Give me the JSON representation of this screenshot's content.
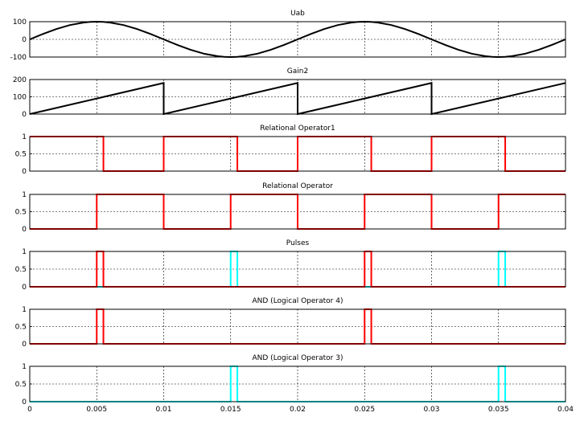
{
  "chart_data": [
    {
      "type": "line",
      "title": "Uab",
      "ylim": [
        -100,
        100
      ],
      "yticks": [
        "100",
        "0",
        "-100"
      ],
      "ytick_values": [
        100,
        0,
        -100
      ],
      "xlim": [
        0,
        0.04
      ],
      "grid": true,
      "series": [
        {
          "color": "#000000",
          "x": [
            0,
            0.001,
            0.002,
            0.003,
            0.004,
            0.0045,
            0.005,
            0.0055,
            0.006,
            0.007,
            0.008,
            0.009,
            0.01,
            0.011,
            0.012,
            0.013,
            0.014,
            0.0145,
            0.015,
            0.0155,
            0.016,
            0.017,
            0.018,
            0.019,
            0.02,
            0.021,
            0.022,
            0.023,
            0.024,
            0.0245,
            0.025,
            0.0255,
            0.026,
            0.027,
            0.028,
            0.029,
            0.03,
            0.031,
            0.032,
            0.033,
            0.034,
            0.0345,
            0.035,
            0.0355,
            0.036,
            0.037,
            0.038,
            0.039,
            0.04
          ],
          "y": [
            0,
            31,
            59,
            81,
            95,
            99,
            100,
            99,
            95,
            81,
            59,
            31,
            0,
            -31,
            -59,
            -81,
            -95,
            -99,
            -100,
            -99,
            -95,
            -81,
            -59,
            -31,
            0,
            31,
            59,
            81,
            95,
            99,
            100,
            99,
            95,
            81,
            59,
            31,
            0,
            -31,
            -59,
            -81,
            -95,
            -99,
            -100,
            -99,
            -95,
            -81,
            -59,
            -31,
            0
          ]
        }
      ]
    },
    {
      "type": "line",
      "title": "Gain2",
      "ylim": [
        0,
        200
      ],
      "yticks": [
        "200",
        "100",
        "0"
      ],
      "ytick_values": [
        200,
        100,
        0
      ],
      "xlim": [
        0,
        0.04
      ],
      "grid": true,
      "series": [
        {
          "color": "#000000",
          "x": [
            0,
            0.01,
            0.01,
            0.02,
            0.02,
            0.03,
            0.03,
            0.04
          ],
          "y": [
            0,
            180,
            0,
            180,
            0,
            180,
            0,
            180
          ]
        }
      ]
    },
    {
      "type": "line",
      "title": "Relational Operator1",
      "ylim": [
        0,
        1
      ],
      "yticks": [
        "1",
        "0.5",
        "0"
      ],
      "ytick_values": [
        1,
        0.5,
        0
      ],
      "xlim": [
        0,
        0.04
      ],
      "grid": true,
      "series": [
        {
          "color": "#ff0000",
          "x": [
            0,
            0.0055,
            0.0055,
            0.01,
            0.01,
            0.0155,
            0.0155,
            0.02,
            0.02,
            0.0255,
            0.0255,
            0.03,
            0.03,
            0.0355,
            0.0355,
            0.04
          ],
          "y": [
            1,
            1,
            0,
            0,
            1,
            1,
            0,
            0,
            1,
            1,
            0,
            0,
            1,
            1,
            0,
            0
          ]
        }
      ]
    },
    {
      "type": "line",
      "title": "Relational Operator",
      "ylim": [
        0,
        1
      ],
      "yticks": [
        "1",
        "0.5",
        "0"
      ],
      "ytick_values": [
        1,
        0.5,
        0
      ],
      "xlim": [
        0,
        0.04
      ],
      "grid": true,
      "series": [
        {
          "color": "#ff0000",
          "x": [
            0,
            0.005,
            0.005,
            0.01,
            0.01,
            0.015,
            0.015,
            0.02,
            0.02,
            0.025,
            0.025,
            0.03,
            0.03,
            0.035,
            0.035,
            0.04
          ],
          "y": [
            0,
            0,
            1,
            1,
            0,
            0,
            1,
            1,
            0,
            0,
            1,
            1,
            0,
            0,
            1,
            1
          ]
        }
      ]
    },
    {
      "type": "line",
      "title": "Pulses",
      "ylim": [
        0,
        1
      ],
      "yticks": [
        "1",
        "0.5",
        "0"
      ],
      "ytick_values": [
        1,
        0.5,
        0
      ],
      "xlim": [
        0,
        0.04
      ],
      "grid": true,
      "series": [
        {
          "color": "#00ffff",
          "x": [
            0,
            0.015,
            0.015,
            0.0155,
            0.0155,
            0.035,
            0.035,
            0.0355,
            0.0355,
            0.04
          ],
          "y": [
            0,
            0,
            1,
            1,
            0,
            0,
            1,
            1,
            0,
            0
          ]
        },
        {
          "color": "#ff0000",
          "x": [
            0,
            0.005,
            0.005,
            0.0055,
            0.0055,
            0.025,
            0.025,
            0.0255,
            0.0255,
            0.04
          ],
          "y": [
            0,
            0,
            1,
            1,
            0,
            0,
            1,
            1,
            0,
            0
          ]
        }
      ]
    },
    {
      "type": "line",
      "title": "AND (Logical Operator 4)",
      "ylim": [
        0,
        1
      ],
      "yticks": [
        "1",
        "0.5",
        "0"
      ],
      "ytick_values": [
        1,
        0.5,
        0
      ],
      "xlim": [
        0,
        0.04
      ],
      "grid": true,
      "series": [
        {
          "color": "#ff0000",
          "x": [
            0,
            0.005,
            0.005,
            0.0055,
            0.0055,
            0.025,
            0.025,
            0.0255,
            0.0255,
            0.04
          ],
          "y": [
            0,
            0,
            1,
            1,
            0,
            0,
            1,
            1,
            0,
            0
          ]
        }
      ]
    },
    {
      "type": "line",
      "title": "AND (Logical Operator 3)",
      "ylim": [
        0,
        1
      ],
      "yticks": [
        "1",
        "0.5",
        "0"
      ],
      "ytick_values": [
        1,
        0.5,
        0
      ],
      "xlim": [
        0,
        0.04
      ],
      "grid": true,
      "xticks": [
        "0",
        "0.005",
        "0.01",
        "0.015",
        "0.02",
        "0.025",
        "0.03",
        "0.035",
        "0.04"
      ],
      "xtick_values": [
        0,
        0.005,
        0.01,
        0.015,
        0.02,
        0.025,
        0.03,
        0.035,
        0.04
      ],
      "series": [
        {
          "color": "#00ffff",
          "x": [
            0,
            0.015,
            0.015,
            0.0155,
            0.0155,
            0.035,
            0.035,
            0.0355,
            0.0355,
            0.04
          ],
          "y": [
            0,
            0,
            1,
            1,
            0,
            0,
            1,
            1,
            0,
            0
          ]
        }
      ]
    }
  ]
}
